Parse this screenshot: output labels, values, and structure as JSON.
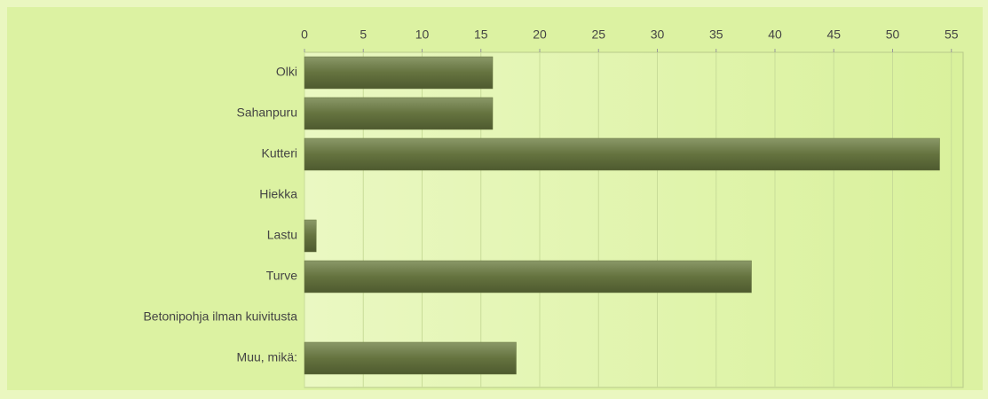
{
  "chart_data": {
    "type": "bar",
    "orientation": "horizontal",
    "categories": [
      "Olki",
      "Sahanpuru",
      "Kutteri",
      "Hiekka",
      "Lastu",
      "Turve",
      "Betonipohja ilman kuivitusta",
      "Muu, mikä:"
    ],
    "values": [
      16,
      16,
      54,
      0,
      1,
      38,
      0,
      18
    ],
    "color": "#65733f",
    "xlim": [
      0,
      56
    ],
    "xticks": [
      0,
      5,
      10,
      15,
      20,
      25,
      30,
      35,
      40,
      45,
      50,
      55
    ],
    "grid": true
  }
}
